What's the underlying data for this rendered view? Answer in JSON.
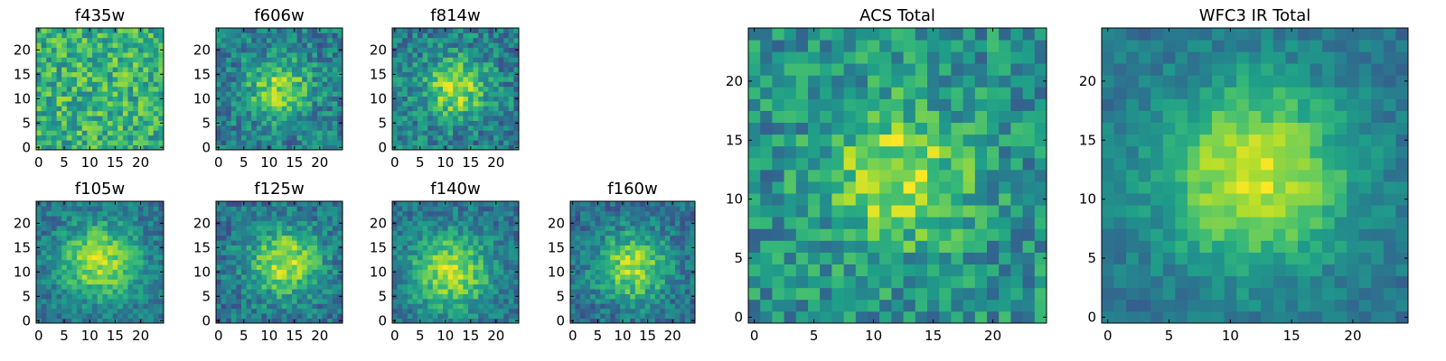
{
  "figure": {
    "background": "#ffffff"
  },
  "colormap": {
    "name": "viridis",
    "stops": [
      "#440154",
      "#482878",
      "#3e4989",
      "#31688e",
      "#26828e",
      "#1f9e89",
      "#35b779",
      "#6ece58",
      "#b5de2b",
      "#fde725"
    ]
  },
  "chart_data": [
    {
      "type": "heatmap",
      "title": "f435w",
      "grid_size": 25,
      "xticks": [
        0,
        5,
        10,
        15,
        20
      ],
      "yticks": [
        0,
        5,
        10,
        15,
        20
      ],
      "xlim": [
        0,
        25
      ],
      "ylim": [
        0,
        25
      ],
      "peak": [
        12,
        12
      ],
      "sigma": 14,
      "amplitude": 0.08,
      "baseline": 0.58,
      "noise": 0.22,
      "seed": 11
    },
    {
      "type": "heatmap",
      "title": "f606w",
      "grid_size": 25,
      "xticks": [
        0,
        5,
        10,
        15,
        20
      ],
      "yticks": [
        0,
        5,
        10,
        15,
        20
      ],
      "xlim": [
        0,
        25
      ],
      "ylim": [
        0,
        25
      ],
      "peak": [
        12,
        12
      ],
      "sigma": 4.5,
      "amplitude": 0.42,
      "baseline": 0.42,
      "noise": 0.2,
      "seed": 23
    },
    {
      "type": "heatmap",
      "title": "f814w",
      "grid_size": 25,
      "xticks": [
        0,
        5,
        10,
        15,
        20
      ],
      "yticks": [
        0,
        5,
        10,
        15,
        20
      ],
      "xlim": [
        0,
        25
      ],
      "ylim": [
        0,
        25
      ],
      "peak": [
        12,
        12
      ],
      "sigma": 4.5,
      "amplitude": 0.45,
      "baseline": 0.42,
      "noise": 0.2,
      "seed": 37
    },
    {
      "type": "heatmap",
      "title": "f105w",
      "grid_size": 25,
      "xticks": [
        0,
        5,
        10,
        15,
        20
      ],
      "yticks": [
        0,
        5,
        10,
        15,
        20
      ],
      "xlim": [
        0,
        25
      ],
      "ylim": [
        0,
        25
      ],
      "peak": [
        12,
        12
      ],
      "sigma": 5.5,
      "amplitude": 0.5,
      "baseline": 0.38,
      "noise": 0.15,
      "seed": 41
    },
    {
      "type": "heatmap",
      "title": "f125w",
      "grid_size": 25,
      "xticks": [
        0,
        5,
        10,
        15,
        20
      ],
      "yticks": [
        0,
        5,
        10,
        15,
        20
      ],
      "xlim": [
        0,
        25
      ],
      "ylim": [
        0,
        25
      ],
      "peak": [
        13,
        12
      ],
      "sigma": 5.0,
      "amplitude": 0.5,
      "baseline": 0.38,
      "noise": 0.17,
      "seed": 53
    },
    {
      "type": "heatmap",
      "title": "f140w",
      "grid_size": 25,
      "xticks": [
        0,
        5,
        10,
        15,
        20
      ],
      "yticks": [
        0,
        5,
        10,
        15,
        20
      ],
      "xlim": [
        0,
        25
      ],
      "ylim": [
        0,
        25
      ],
      "peak": [
        11,
        10
      ],
      "sigma": 5.5,
      "amplitude": 0.5,
      "baseline": 0.38,
      "noise": 0.15,
      "seed": 67
    },
    {
      "type": "heatmap",
      "title": "f160w",
      "grid_size": 25,
      "xticks": [
        0,
        5,
        10,
        15,
        20
      ],
      "yticks": [
        0,
        5,
        10,
        15,
        20
      ],
      "xlim": [
        0,
        25
      ],
      "ylim": [
        0,
        25
      ],
      "peak": [
        12,
        11
      ],
      "sigma": 5.0,
      "amplitude": 0.5,
      "baseline": 0.36,
      "noise": 0.16,
      "seed": 79
    },
    {
      "type": "heatmap",
      "title": "ACS Total",
      "grid_size": 25,
      "xticks": [
        0,
        5,
        10,
        15,
        20
      ],
      "yticks": [
        0,
        5,
        10,
        15,
        20
      ],
      "xlim": [
        0,
        25
      ],
      "ylim": [
        0,
        25
      ],
      "peak": [
        12,
        12
      ],
      "sigma": 4.0,
      "amplitude": 0.4,
      "baseline": 0.5,
      "noise": 0.2,
      "seed": 89
    },
    {
      "type": "heatmap",
      "title": "WFC3 IR Total",
      "grid_size": 25,
      "xticks": [
        0,
        5,
        10,
        15,
        20
      ],
      "yticks": [
        0,
        5,
        10,
        15,
        20
      ],
      "xlim": [
        0,
        25
      ],
      "ylim": [
        0,
        25
      ],
      "peak": [
        12,
        12
      ],
      "sigma": 5.5,
      "amplitude": 0.55,
      "baseline": 0.38,
      "noise": 0.1,
      "seed": 97
    }
  ]
}
